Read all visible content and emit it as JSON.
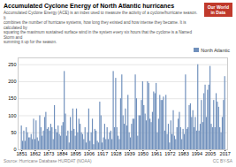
{
  "chart_data": {
    "type": "bar",
    "title": "Accumulated Cyclone Energy of North Atlantic hurricanes",
    "subtitle": "Accumulated Cyclone Energy (ACE) is an index used to measure the activity of a cyclone/hurricane season. It\ncombines the number of hurricane systems, how long they existed and how intense they became. It is calculated by\nsquaring the maximum sustained surface wind in the system every six hours that the cyclone is a Named Storm and\nsumming it up for the season.",
    "source": "Source: Hurricane Database HURDAT (NOAA)",
    "annotations": [
      "Our World\nin Data",
      "CC BY-SA"
    ],
    "x": [
      1851,
      1852,
      1853,
      1854,
      1855,
      1856,
      1857,
      1858,
      1859,
      1860,
      1861,
      1862,
      1863,
      1864,
      1865,
      1866,
      1867,
      1868,
      1869,
      1870,
      1871,
      1872,
      1873,
      1874,
      1875,
      1876,
      1877,
      1878,
      1879,
      1880,
      1881,
      1882,
      1883,
      1884,
      1885,
      1886,
      1887,
      1888,
      1889,
      1890,
      1891,
      1892,
      1893,
      1894,
      1895,
      1896,
      1897,
      1898,
      1899,
      1900,
      1901,
      1902,
      1903,
      1904,
      1905,
      1906,
      1907,
      1908,
      1909,
      1910,
      1911,
      1912,
      1913,
      1914,
      1915,
      1916,
      1917,
      1918,
      1919,
      1920,
      1921,
      1922,
      1923,
      1924,
      1925,
      1926,
      1927,
      1928,
      1929,
      1930,
      1931,
      1932,
      1933,
      1934,
      1935,
      1936,
      1937,
      1938,
      1939,
      1940,
      1941,
      1942,
      1943,
      1944,
      1945,
      1946,
      1947,
      1948,
      1949,
      1950,
      1951,
      1952,
      1953,
      1954,
      1955,
      1956,
      1957,
      1958,
      1959,
      1960,
      1961,
      1962,
      1963,
      1964,
      1965,
      1966,
      1967,
      1968,
      1969,
      1970,
      1971,
      1972,
      1973,
      1974,
      1975,
      1976,
      1977,
      1978,
      1979,
      1980,
      1981,
      1982,
      1983,
      1984,
      1985,
      1986,
      1987,
      1988,
      1989,
      1990,
      1991,
      1992,
      1993,
      1994,
      1995,
      1996,
      1997,
      1998,
      1999,
      2000,
      2001,
      2002,
      2003,
      2004,
      2005,
      2006,
      2007,
      2008,
      2009,
      2010,
      2011,
      2012,
      2013,
      2014,
      2015,
      2016,
      2017
    ],
    "series": [
      {
        "name": "North Atlantic",
        "color": "#7090bc",
        "values": [
          70,
          25,
          55,
          25,
          65,
          50,
          35,
          35,
          45,
          30,
          90,
          30,
          85,
          35,
          25,
          100,
          65,
          40,
          55,
          95,
          110,
          60,
          65,
          55,
          75,
          65,
          30,
          130,
          60,
          50,
          70,
          45,
          40,
          70,
          80,
          230,
          105,
          40,
          55,
          20,
          95,
          55,
          120,
          60,
          40,
          120,
          50,
          90,
          75,
          50,
          45,
          30,
          65,
          20,
          50,
          120,
          25,
          50,
          90,
          15,
          60,
          55,
          25,
          20,
          140,
          100,
          20,
          35,
          75,
          30,
          65,
          30,
          50,
          55,
          30,
          230,
          65,
          210,
          65,
          40,
          30,
          150,
          220,
          100,
          75,
          120,
          70,
          160,
          50,
          35,
          75,
          90,
          90,
          220,
          150,
          40,
          100,
          100,
          145,
          200,
          130,
          105,
          85,
          200,
          195,
          90,
          80,
          110,
          170,
          165,
          195,
          50,
          90,
          160,
          145,
          145,
          155,
          55,
          160,
          45,
          75,
          20,
          85,
          45,
          115,
          40,
          30,
          65,
          90,
          110,
          65,
          30,
          60,
          45,
          220,
          60,
          65,
          130,
          135,
          95,
          115,
          65,
          95,
          55,
          250,
          55,
          75,
          145,
          80,
          165,
          190,
          95,
          175,
          190,
          245,
          75,
          65,
          145,
          65,
          165,
          140,
          125,
          65,
          50,
          95,
          145,
          215
        ]
      }
    ],
    "xlim": [
      1848,
      2019
    ],
    "xticks": [
      1851,
      1862,
      1873,
      1884,
      1895,
      1906,
      1917,
      1928,
      1939,
      1950,
      1961,
      1972,
      1983,
      1994,
      2005,
      2017
    ],
    "ylim": [
      0,
      270
    ],
    "yticks": [
      0,
      50,
      100,
      150,
      200,
      250
    ],
    "grid": true,
    "legend": "upper right"
  }
}
